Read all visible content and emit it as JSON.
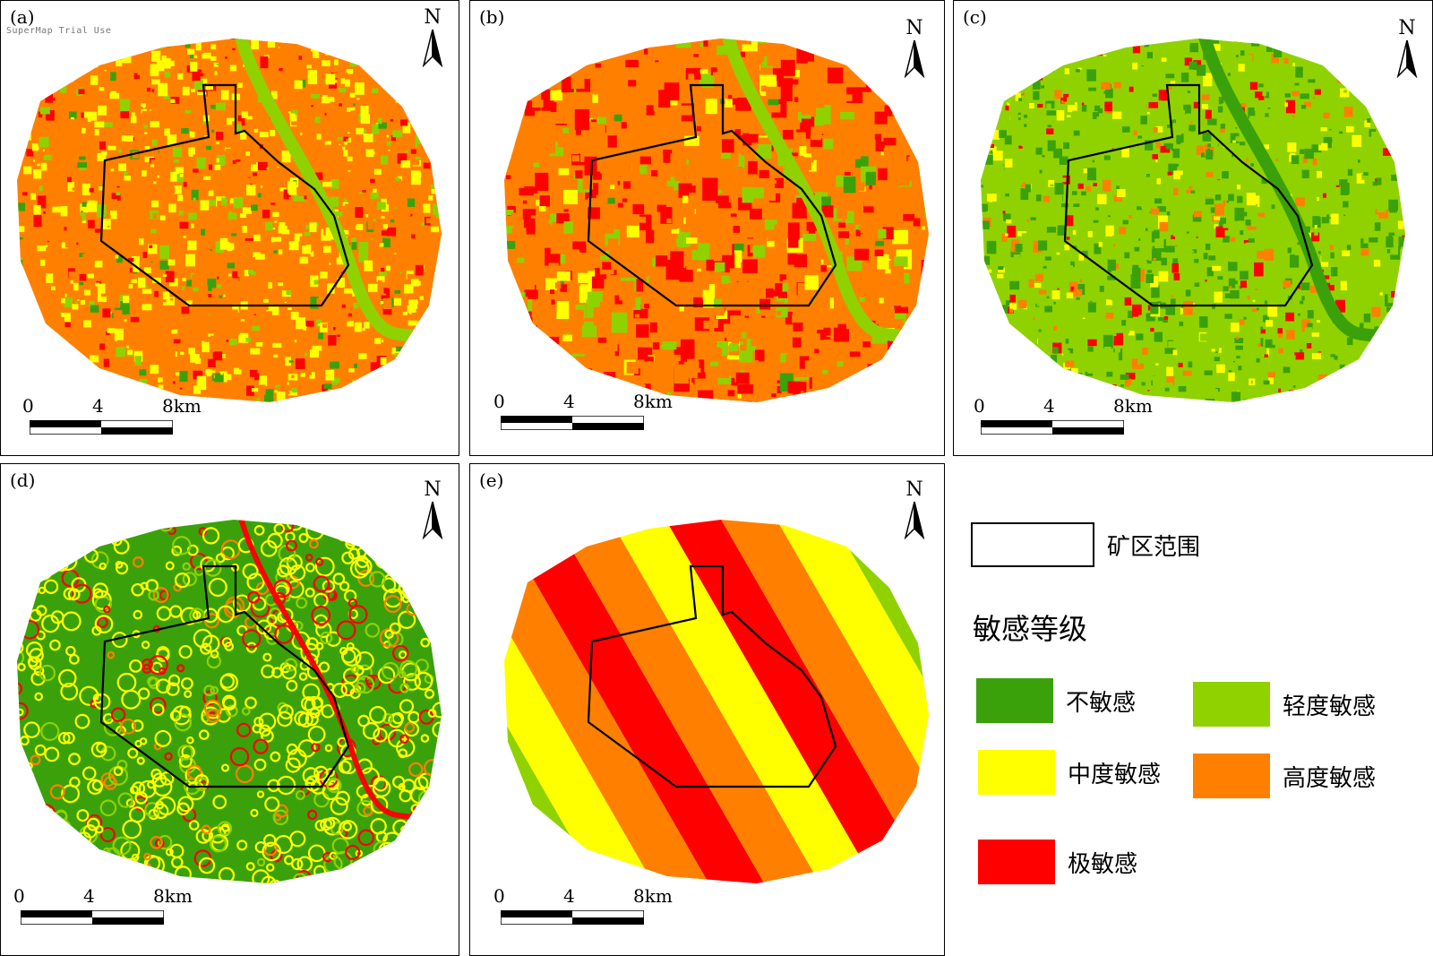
{
  "panels": [
    {
      "label": "(a)",
      "watermark": "SuperMap Trial Use",
      "scheme": "a"
    },
    {
      "label": "(b)",
      "watermark": "",
      "scheme": "b"
    },
    {
      "label": "(c)",
      "watermark": "",
      "scheme": "c"
    },
    {
      "label": "(d)",
      "watermark": "",
      "scheme": "d"
    },
    {
      "label": "(e)",
      "watermark": "",
      "scheme": "e"
    }
  ],
  "north_label": "N",
  "scale_bar": {
    "ticks": [
      "0",
      "4",
      "8km"
    ],
    "unit": "km"
  },
  "legend": {
    "mine_area_label": "矿区范围",
    "title": "敏感等级",
    "classes": [
      {
        "label": "不敏感",
        "color": "#3aa10b"
      },
      {
        "label": "轻度敏感",
        "color": "#8fd200"
      },
      {
        "label": "中度敏感",
        "color": "#ffff00"
      },
      {
        "label": "高度敏感",
        "color": "#ff8000"
      },
      {
        "label": "极敏感",
        "color": "#ff0000"
      }
    ]
  }
}
